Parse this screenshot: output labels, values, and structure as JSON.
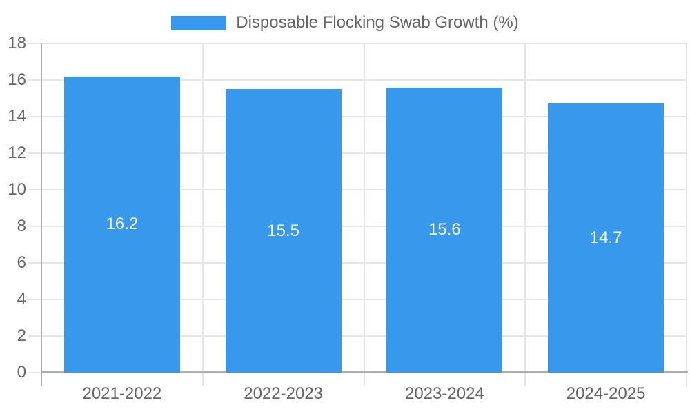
{
  "chart_data": {
    "type": "bar",
    "title": "",
    "legend": {
      "label": "Disposable Flocking Swab Growth (%)",
      "position": "top"
    },
    "categories": [
      "2021-2022",
      "2022-2023",
      "2023-2024",
      "2024-2025"
    ],
    "values": [
      16.2,
      15.5,
      15.6,
      14.7
    ],
    "data_labels": [
      "16.2",
      "15.5",
      "15.6",
      "14.7"
    ],
    "ylabel": "",
    "xlabel": "",
    "ylim": [
      0,
      18
    ],
    "yticks": [
      0,
      2,
      4,
      6,
      8,
      10,
      12,
      14,
      16,
      18
    ],
    "ytick_labels": [
      "0",
      "2",
      "4",
      "6",
      "8",
      "10",
      "12",
      "14",
      "16",
      "18"
    ],
    "grid": true,
    "colors": {
      "bar": "#3899ec",
      "grid": "#e6e6e6",
      "axis": "#aeaeae",
      "tick_label": "#666666",
      "data_label": "#ffffff",
      "background": "#ffffff"
    }
  }
}
